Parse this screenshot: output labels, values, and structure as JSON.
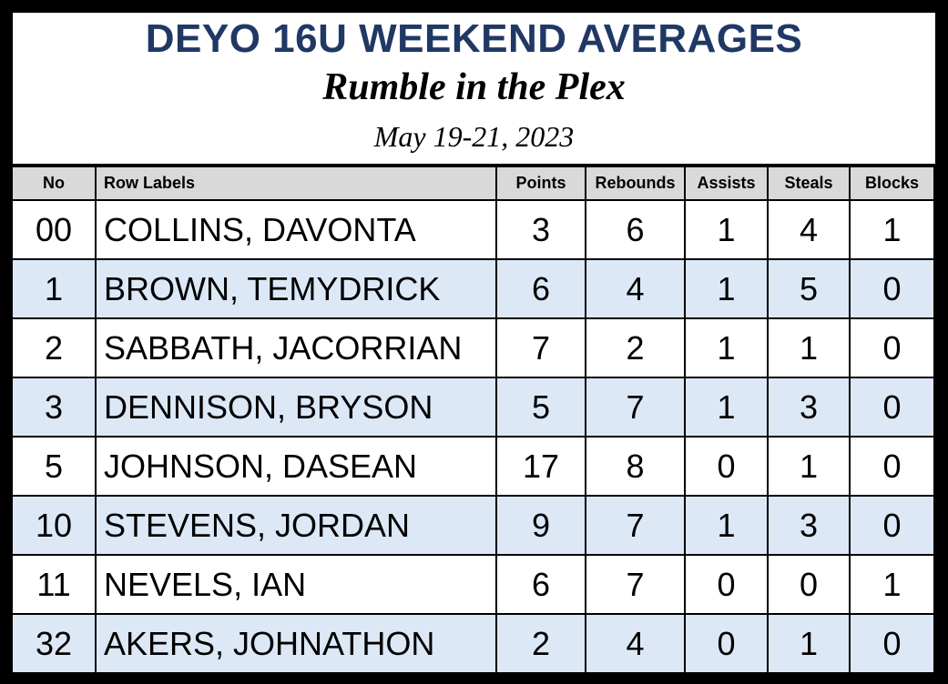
{
  "header": {
    "title": "DEYO 16U WEEKEND AVERAGES",
    "subtitle": "Rumble in the Plex",
    "date": "May 19-21, 2023"
  },
  "table": {
    "columns": [
      "No",
      "Row Labels",
      "Points",
      "Rebounds",
      "Assists",
      "Steals",
      "Blocks"
    ],
    "rows": [
      [
        "00",
        "COLLINS, DAVONTA",
        3,
        6,
        1,
        4,
        1
      ],
      [
        "1",
        "BROWN, TEMYDRICK",
        6,
        4,
        1,
        5,
        0
      ],
      [
        "2",
        "SABBATH, JACORRIAN",
        7,
        2,
        1,
        1,
        0
      ],
      [
        "3",
        "DENNISON, BRYSON",
        5,
        7,
        1,
        3,
        0
      ],
      [
        "5",
        "JOHNSON, DASEAN",
        17,
        8,
        0,
        1,
        0
      ],
      [
        "10",
        "STEVENS, JORDAN",
        9,
        7,
        1,
        3,
        0
      ],
      [
        "11",
        "NEVELS, IAN",
        6,
        7,
        0,
        0,
        1
      ],
      [
        "32",
        "AKERS, JOHNATHON",
        2,
        4,
        0,
        1,
        0
      ]
    ]
  }
}
